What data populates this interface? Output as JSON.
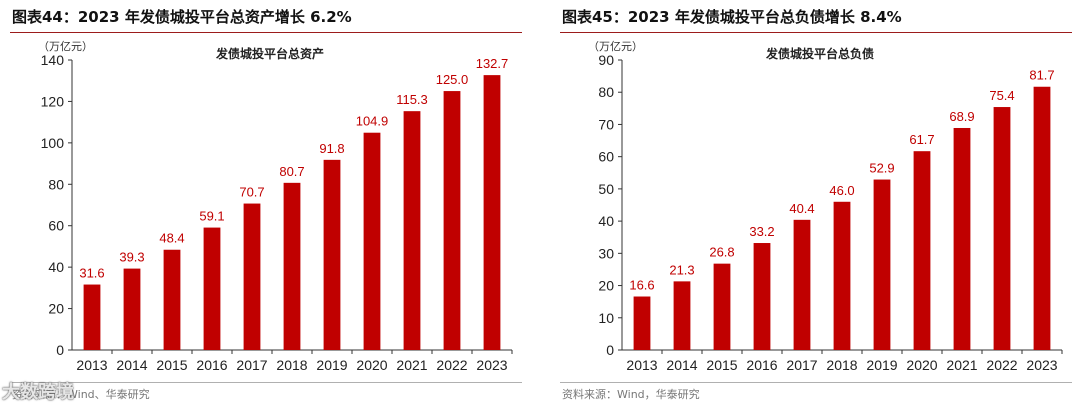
{
  "colors": {
    "bar": "#c00000",
    "title_rule": "#9c1c1c"
  },
  "watermark": "大数跨境",
  "chart_data": [
    {
      "type": "bar",
      "figure_title": "图表44：2023 年发债城投平台总资产增长 6.2%",
      "title": "发债城投平台总资产",
      "unit": "（万亿元）",
      "categories": [
        "2013",
        "2014",
        "2015",
        "2016",
        "2017",
        "2018",
        "2019",
        "2020",
        "2021",
        "2022",
        "2023"
      ],
      "values": [
        31.6,
        39.3,
        48.4,
        59.1,
        70.7,
        80.7,
        91.8,
        104.9,
        115.3,
        125.0,
        132.7
      ],
      "value_labels": [
        "31.6",
        "39.3",
        "48.4",
        "59.1",
        "70.7",
        "80.7",
        "91.8",
        "104.9",
        "115.3",
        "125.0",
        "132.7"
      ],
      "ylim": [
        0,
        140
      ],
      "yticks": [
        "0",
        "20",
        "40",
        "60",
        "80",
        "100",
        "120",
        "140"
      ],
      "source": "资料来源：Wind、华泰研究"
    },
    {
      "type": "bar",
      "figure_title": "图表45：2023 年发债城投平台总负债增长 8.4%",
      "title": "发债城投平台总负债",
      "unit": "（万亿元）",
      "categories": [
        "2013",
        "2014",
        "2015",
        "2016",
        "2017",
        "2018",
        "2019",
        "2020",
        "2021",
        "2022",
        "2023"
      ],
      "values": [
        16.6,
        21.3,
        26.8,
        33.2,
        40.4,
        46.0,
        52.9,
        61.7,
        68.9,
        75.4,
        81.7
      ],
      "value_labels": [
        "16.6",
        "21.3",
        "26.8",
        "33.2",
        "40.4",
        "46.0",
        "52.9",
        "61.7",
        "68.9",
        "75.4",
        "81.7"
      ],
      "ylim": [
        0,
        90
      ],
      "yticks": [
        "0",
        "10",
        "20",
        "30",
        "40",
        "50",
        "60",
        "70",
        "80",
        "90"
      ],
      "source": "资料来源：Wind，华泰研究"
    }
  ]
}
